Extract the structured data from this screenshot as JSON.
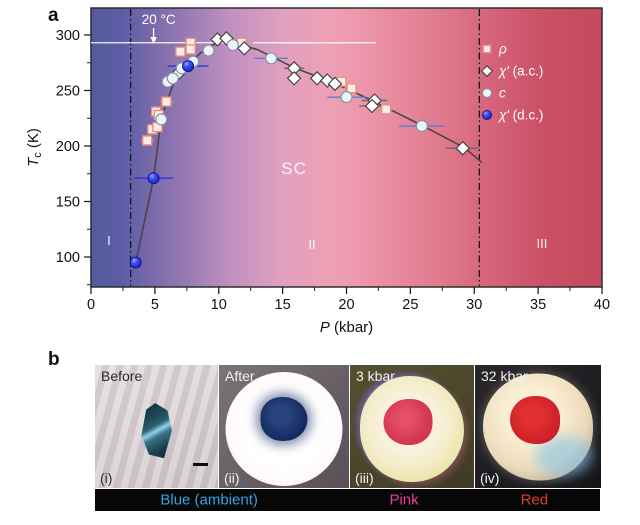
{
  "panel_a": {
    "label": "a"
  },
  "panel_b": {
    "label": "b",
    "photos": [
      {
        "label": "Before",
        "sublabel": "(i)",
        "sample_color": "#1d4a55"
      },
      {
        "label": "After",
        "sublabel": "(ii)",
        "sample_color": "#152c62"
      },
      {
        "label": "3 kbar",
        "sublabel": "(iii)",
        "sample_color": "#d63a52"
      },
      {
        "label": "32 kbar",
        "sublabel": "(iv)",
        "sample_color": "#cf2128"
      }
    ],
    "caption_labels": [
      {
        "text": "Blue (ambient)",
        "color": "#35a2e8"
      },
      {
        "text": "Pink",
        "color": "#e8419b"
      },
      {
        "text": "Red",
        "color": "#e23b2e"
      }
    ]
  },
  "chart_data": {
    "type": "scatter",
    "title": "",
    "xlabel": "P (kbar)",
    "ylabel": "Tc (K)",
    "xlabel_parts": {
      "main": "P",
      "unit": " (kbar)"
    },
    "ylabel_parts": {
      "main": "T",
      "sub": "c",
      "unit": " (K)"
    },
    "xlim": [
      0,
      40
    ],
    "ylim": [
      73,
      324
    ],
    "x_ticks": [
      0,
      5,
      10,
      15,
      20,
      25,
      30,
      35,
      40
    ],
    "x_minor_step": 2.5,
    "y_ticks": [
      100,
      150,
      200,
      250,
      300
    ],
    "y_minor_step": 25,
    "grid": false,
    "legend_position": "upper right inside",
    "gradient_stops": [
      [
        0,
        "#545a9e"
      ],
      [
        0.06,
        "#5c5da4"
      ],
      [
        0.15,
        "#8771af"
      ],
      [
        0.27,
        "#bf90c0"
      ],
      [
        0.38,
        "#e2a1c0"
      ],
      [
        0.48,
        "#ee9fb4"
      ],
      [
        0.58,
        "#e98da2"
      ],
      [
        0.68,
        "#e07b8e"
      ],
      [
        0.78,
        "#d5647a"
      ],
      [
        0.88,
        "#cb5166"
      ],
      [
        1,
        "#c6495d"
      ]
    ],
    "room_temp_line": {
      "label": "20 °C",
      "tc": 293,
      "p_start": 0,
      "p_end": 22.3,
      "text_p": 5.3,
      "arrow_p": 4.9
    },
    "phase_boundaries_kbar": [
      3.1,
      30.4
    ],
    "region_labels": [
      {
        "text": "I",
        "p": 1.4,
        "tc": 111
      },
      {
        "text": "II",
        "p": 17.3,
        "tc": 107
      },
      {
        "text": "III",
        "p": 35.3,
        "tc": 108
      }
    ],
    "sc_label": {
      "text": "SC",
      "p": 15.9,
      "tc": 175
    },
    "series": [
      {
        "name": "ρ",
        "marker": "square",
        "fill": "#fbece8",
        "stroke": "#e8907f",
        "errcolor": "#e8907f",
        "points": [
          {
            "p": 4.4,
            "tc": 205,
            "xerr": 0.5
          },
          {
            "p": 4.8,
            "tc": 215
          },
          {
            "p": 5.2,
            "tc": 217
          },
          {
            "p": 5.1,
            "tc": 231
          },
          {
            "p": 5.3,
            "tc": 228
          },
          {
            "p": 5.9,
            "tc": 240,
            "xerr": 0.5
          },
          {
            "p": 7.0,
            "tc": 285
          },
          {
            "p": 7.8,
            "tc": 293
          },
          {
            "p": 7.8,
            "tc": 287
          },
          {
            "p": 11.8,
            "tc": 293,
            "xerr": 0.9
          },
          {
            "p": 19.6,
            "tc": 258
          },
          {
            "p": 20.4,
            "tc": 252,
            "xerr": 0.6
          },
          {
            "p": 23.1,
            "tc": 233,
            "xerr": 0.7
          }
        ]
      },
      {
        "name": "χ′ (a.c.)",
        "marker": "diamond",
        "fill": "#ffffff",
        "stroke": "#444444",
        "errcolor": "#6a6a6a",
        "points": [
          {
            "p": 6.8,
            "tc": 265
          },
          {
            "p": 9.9,
            "tc": 296
          },
          {
            "p": 10.6,
            "tc": 297
          },
          {
            "p": 12.0,
            "tc": 288
          },
          {
            "p": 15.9,
            "tc": 270,
            "xerr": 0.8
          },
          {
            "p": 15.9,
            "tc": 261
          },
          {
            "p": 17.7,
            "tc": 261
          },
          {
            "p": 18.5,
            "tc": 259
          },
          {
            "p": 19.1,
            "tc": 256
          },
          {
            "p": 22.2,
            "tc": 241,
            "xerr": 1.0
          },
          {
            "p": 22.0,
            "tc": 236,
            "xerr": 1.0
          },
          {
            "p": 29.1,
            "tc": 198,
            "xerr": 1.3
          }
        ]
      },
      {
        "name": "c",
        "marker": "circle",
        "fill": "#eef3f8",
        "stroke": "#8095aa",
        "errcolor": "#5b7fd1",
        "points": [
          {
            "p": 5.5,
            "tc": 224
          },
          {
            "p": 6.0,
            "tc": 258
          },
          {
            "p": 6.4,
            "tc": 261
          },
          {
            "p": 7.1,
            "tc": 270
          },
          {
            "p": 8.0,
            "tc": 276
          },
          {
            "p": 9.2,
            "tc": 286
          },
          {
            "p": 11.1,
            "tc": 291
          },
          {
            "p": 14.1,
            "tc": 279,
            "xerr": 1.3
          },
          {
            "p": 20.0,
            "tc": 244,
            "xerr": 1.5
          },
          {
            "p": 25.9,
            "tc": 218,
            "xerr": 1.8
          }
        ]
      },
      {
        "name": "χ′ (d.c.)",
        "marker": "sphere",
        "fill": "#2b35ea",
        "stroke": "#1217a0",
        "errcolor": "#2a35e0",
        "points": [
          {
            "p": 3.5,
            "tc": 95
          },
          {
            "p": 4.9,
            "tc": 171,
            "xerr": 1.5
          },
          {
            "p": 7.6,
            "tc": 272,
            "xerr": 1.6
          }
        ]
      }
    ],
    "trend_line": [
      [
        3.5,
        95
      ],
      [
        4.9,
        171
      ],
      [
        5.5,
        225
      ],
      [
        6.5,
        258
      ],
      [
        7.5,
        272
      ],
      [
        8.5,
        283
      ],
      [
        9.5,
        291
      ],
      [
        10.3,
        294.5
      ],
      [
        11.5,
        291.5
      ],
      [
        13,
        287
      ],
      [
        16,
        270
      ],
      [
        19,
        257
      ],
      [
        22,
        241
      ],
      [
        26,
        218
      ],
      [
        29.3,
        198
      ],
      [
        30.6,
        185
      ]
    ]
  }
}
